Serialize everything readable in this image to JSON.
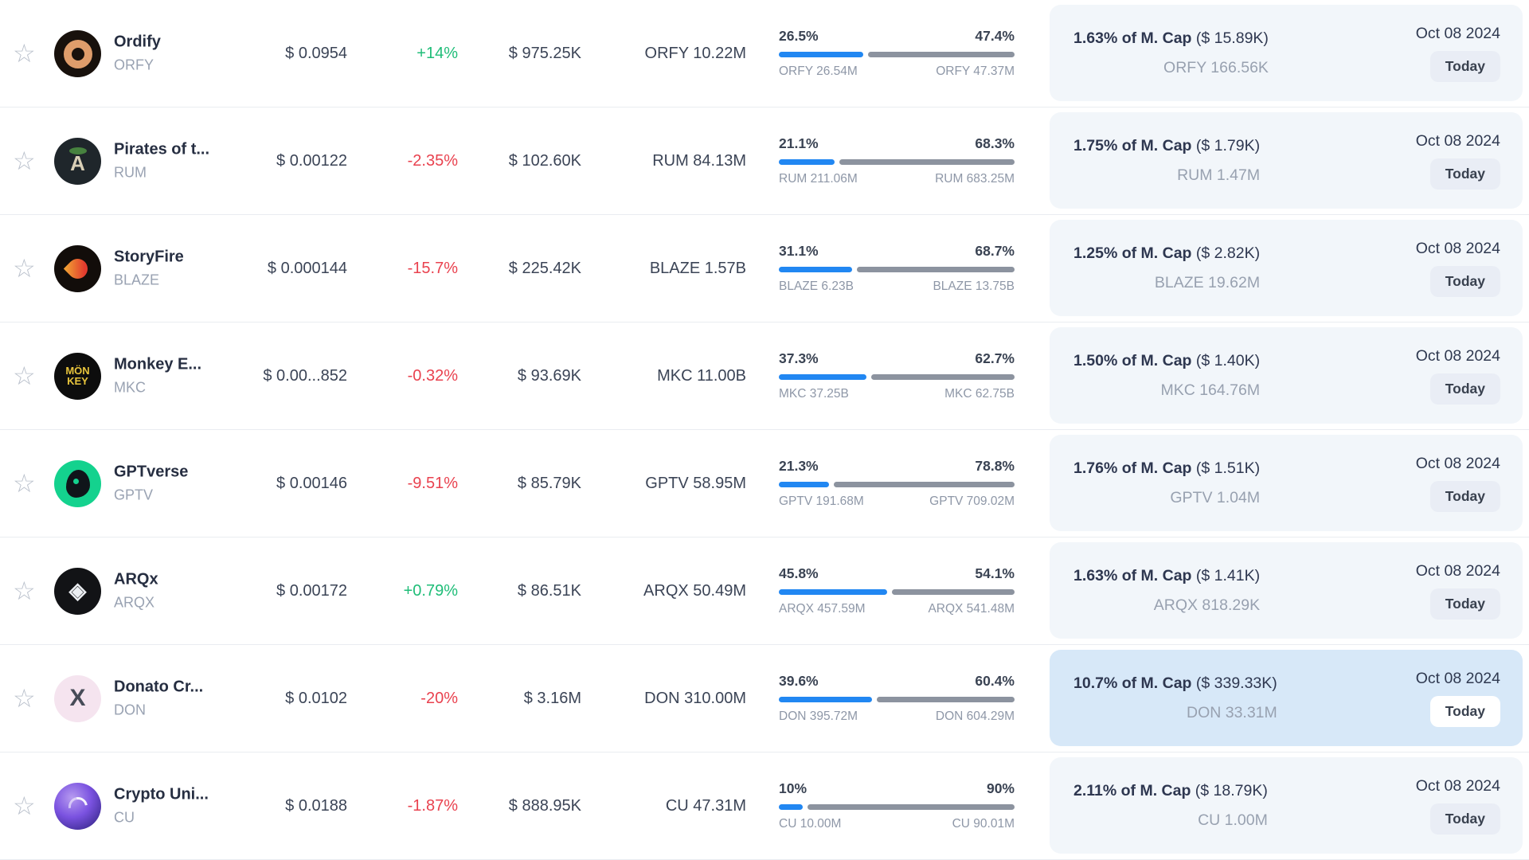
{
  "colors": {
    "positive": "#1fbd78",
    "negative": "#e9424f",
    "bar_fill": "#2187f2",
    "bar_rest": "#8c939f",
    "card_bg": "#f2f6fa",
    "card_highlight_bg": "#d7e8f8",
    "badge_bg": "#e9edf5",
    "badge_highlight_bg": "#ffffff"
  },
  "table": {
    "rows": [
      {
        "name": "Ordify",
        "symbol": "ORFY",
        "price": "$ 0.0954",
        "change": "+14%",
        "change_dir": "up",
        "volume": "$ 975.25K",
        "amount": "ORFY 10.22M",
        "bar": {
          "left_pct": "26.5%",
          "right_pct": "47.4%",
          "left_value": 26.5,
          "right_value": 47.4,
          "left_label": "ORFY 26.54M",
          "right_label": "ORFY 47.37M"
        },
        "card": {
          "pct_bold": "1.63% of M. Cap",
          "cap_paren": "($ 15.89K)",
          "sub": "ORFY 166.56K",
          "date": "Oct 08 2024",
          "badge": "Today",
          "highlighted": false
        },
        "logo": {
          "shape": "ring",
          "bg": "#18110c"
        }
      },
      {
        "name": "Pirates of t...",
        "symbol": "RUM",
        "price": "$ 0.00122",
        "change": "-2.35%",
        "change_dir": "down",
        "volume": "$ 102.60K",
        "amount": "RUM 84.13M",
        "bar": {
          "left_pct": "21.1%",
          "right_pct": "68.3%",
          "left_value": 21.1,
          "right_value": 68.3,
          "left_label": "RUM 211.06M",
          "right_label": "RUM 683.25M"
        },
        "card": {
          "pct_bold": "1.75% of M. Cap",
          "cap_paren": "($ 1.79K)",
          "sub": "RUM 1.47M",
          "date": "Oct 08 2024",
          "badge": "Today",
          "highlighted": false
        },
        "logo": {
          "shape": "palm",
          "bg": "#1f262b",
          "text": "A",
          "text_color": "#d9cfb6",
          "text_size": "26px"
        }
      },
      {
        "name": "StoryFire",
        "symbol": "BLAZE",
        "price": "$ 0.000144",
        "change": "-15.7%",
        "change_dir": "down",
        "volume": "$ 225.42K",
        "amount": "BLAZE 1.57B",
        "bar": {
          "left_pct": "31.1%",
          "right_pct": "68.7%",
          "left_value": 31.1,
          "right_value": 68.7,
          "left_label": "BLAZE 6.23B",
          "right_label": "BLAZE 13.75B"
        },
        "card": {
          "pct_bold": "1.25% of M. Cap",
          "cap_paren": "($ 2.82K)",
          "sub": "BLAZE 19.62M",
          "date": "Oct 08 2024",
          "badge": "Today",
          "highlighted": false
        },
        "logo": {
          "shape": "flame",
          "bg": "#120d0a"
        }
      },
      {
        "name": "Monkey E...",
        "symbol": "MKC",
        "price": "$ 0.00...852",
        "change": "-0.32%",
        "change_dir": "down",
        "volume": "$ 93.69K",
        "amount": "MKC 11.00B",
        "bar": {
          "left_pct": "37.3%",
          "right_pct": "62.7%",
          "left_value": 37.3,
          "right_value": 62.7,
          "left_label": "MKC 37.25B",
          "right_label": "MKC 62.75B"
        },
        "card": {
          "pct_bold": "1.50% of M. Cap",
          "cap_paren": "($ 1.40K)",
          "sub": "MKC 164.76M",
          "date": "Oct 08 2024",
          "badge": "Today",
          "highlighted": false
        },
        "logo": {
          "shape": "text",
          "bg": "#0d0d0d",
          "text": "MÖN\nKEY",
          "text_color": "#e7c43c",
          "text_size": "13px"
        }
      },
      {
        "name": "GPTverse",
        "symbol": "GPTV",
        "price": "$ 0.00146",
        "change": "-9.51%",
        "change_dir": "down",
        "volume": "$ 85.79K",
        "amount": "GPTV 58.95M",
        "bar": {
          "left_pct": "21.3%",
          "right_pct": "78.8%",
          "left_value": 21.3,
          "right_value": 78.8,
          "left_label": "GPTV 191.68M",
          "right_label": "GPTV 709.02M"
        },
        "card": {
          "pct_bold": "1.76% of M. Cap",
          "cap_paren": "($ 1.51K)",
          "sub": "GPTV 1.04M",
          "date": "Oct 08 2024",
          "badge": "Today",
          "highlighted": false
        },
        "logo": {
          "shape": "blob",
          "bg": "#14d28e"
        }
      },
      {
        "name": "ARQx",
        "symbol": "ARQX",
        "price": "$ 0.00172",
        "change": "+0.79%",
        "change_dir": "up",
        "volume": "$ 86.51K",
        "amount": "ARQX 50.49M",
        "bar": {
          "left_pct": "45.8%",
          "right_pct": "54.1%",
          "left_value": 45.8,
          "right_value": 54.1,
          "left_label": "ARQX 457.59M",
          "right_label": "ARQX 541.48M"
        },
        "card": {
          "pct_bold": "1.63% of M. Cap",
          "cap_paren": "($ 1.41K)",
          "sub": "ARQX 818.29K",
          "date": "Oct 08 2024",
          "badge": "Today",
          "highlighted": false
        },
        "logo": {
          "shape": "text",
          "bg": "#121316",
          "text": "◈",
          "text_color": "#eceff3",
          "text_size": "28px"
        }
      },
      {
        "name": "Donato Cr...",
        "symbol": "DON",
        "price": "$ 0.0102",
        "change": "-20%",
        "change_dir": "down",
        "volume": "$ 3.16M",
        "amount": "DON 310.00M",
        "bar": {
          "left_pct": "39.6%",
          "right_pct": "60.4%",
          "left_value": 39.6,
          "right_value": 60.4,
          "left_label": "DON 395.72M",
          "right_label": "DON 604.29M"
        },
        "card": {
          "pct_bold": "10.7% of M. Cap",
          "cap_paren": "($ 339.33K)",
          "sub": "DON 33.31M",
          "date": "Oct 08 2024",
          "badge": "Today",
          "highlighted": true
        },
        "logo": {
          "shape": "text",
          "bg": "#f5e4ef",
          "text": "X",
          "text_color": "#474c58",
          "text_size": "30px"
        }
      },
      {
        "name": "Crypto Uni...",
        "symbol": "CU",
        "price": "$ 0.0188",
        "change": "-1.87%",
        "change_dir": "down",
        "volume": "$ 888.95K",
        "amount": "CU 47.31M",
        "bar": {
          "left_pct": "10%",
          "right_pct": "90%",
          "left_value": 10,
          "right_value": 90,
          "left_label": "CU 10.00M",
          "right_label": "CU 90.01M"
        },
        "card": {
          "pct_bold": "2.11% of M. Cap",
          "cap_paren": "($ 18.79K)",
          "sub": "CU 1.00M",
          "date": "Oct 08 2024",
          "badge": "Today",
          "highlighted": false
        },
        "logo": {
          "shape": "swirl",
          "bg": "radial-gradient(circle at 38% 32%, #b79bf0, #7a52e0 45%, #45309c 80%, #332373)"
        }
      }
    ]
  }
}
